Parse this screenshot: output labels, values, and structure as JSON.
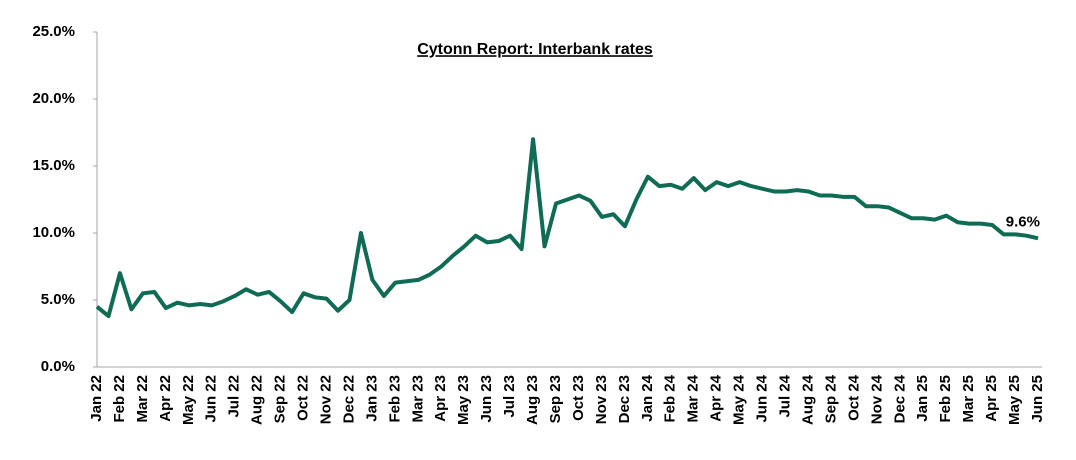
{
  "chart_data": {
    "type": "line",
    "title": "Cytonn Report: Interbank rates",
    "categories": [
      "Jan 22",
      null,
      "Feb 22",
      null,
      "Mar 22",
      null,
      "Apr 22",
      null,
      "May 22",
      null,
      "Jun 22",
      null,
      "Jul 22",
      null,
      "Aug 22",
      null,
      "Sep 22",
      null,
      "Oct 22",
      null,
      "Nov 22",
      null,
      "Dec 22",
      null,
      "Jan 23",
      null,
      "Feb 23",
      null,
      "Mar 23",
      null,
      "Apr 23",
      null,
      "May 23",
      null,
      "Jun 23",
      null,
      "Jul 23",
      null,
      "Aug 23",
      null,
      "Sep 23",
      null,
      "Oct 23",
      null,
      "Nov 23",
      null,
      "Dec 23",
      null,
      "Jan 24",
      null,
      "Feb 24",
      null,
      "Mar 24",
      null,
      "Apr 24",
      null,
      "May 24",
      null,
      "Jun 24",
      null,
      "Jul 24",
      null,
      "Aug 24",
      null,
      "Sep 24",
      null,
      "Oct 24",
      null,
      "Nov 24",
      null,
      "Dec 24",
      null,
      "Jan 25",
      null,
      "Feb 25",
      null,
      "Mar 25",
      null,
      "Apr 25",
      null,
      "May 25",
      null,
      "Jun 25"
    ],
    "series": [
      {
        "name": "Interbank rate",
        "color": "#106b54",
        "values": [
          4.5,
          3.8,
          7.0,
          4.3,
          5.5,
          5.6,
          4.4,
          4.8,
          4.6,
          4.7,
          4.6,
          4.9,
          5.3,
          5.8,
          5.4,
          5.6,
          4.9,
          4.1,
          5.5,
          5.2,
          5.1,
          4.2,
          5.0,
          10.0,
          6.5,
          5.3,
          6.3,
          6.4,
          6.5,
          6.9,
          7.5,
          8.3,
          9.0,
          9.8,
          9.3,
          9.4,
          9.8,
          8.8,
          17.0,
          9.0,
          12.2,
          12.5,
          12.8,
          12.4,
          11.2,
          11.4,
          10.5,
          12.5,
          14.2,
          13.5,
          13.6,
          13.3,
          14.1,
          13.2,
          13.8,
          13.5,
          13.8,
          13.5,
          13.3,
          13.1,
          13.1,
          13.2,
          13.1,
          12.8,
          12.8,
          12.7,
          12.7,
          12.0,
          12.0,
          11.9,
          11.5,
          11.1,
          11.1,
          11.0,
          11.3,
          10.8,
          10.7,
          10.7,
          10.6,
          9.9,
          9.9,
          9.8,
          9.6
        ],
        "value_labels": [
          null,
          null,
          null,
          null,
          null,
          null,
          null,
          null,
          null,
          null,
          null,
          null,
          null,
          null,
          null,
          null,
          null,
          null,
          null,
          null,
          null,
          null,
          null,
          null,
          null,
          null,
          null,
          null,
          null,
          null,
          null,
          null,
          null,
          null,
          null,
          null,
          null,
          null,
          null,
          null,
          null,
          null,
          null,
          null,
          null,
          null,
          null,
          null,
          null,
          null,
          null,
          null,
          null,
          null,
          null,
          null,
          null,
          null,
          null,
          null,
          null,
          null,
          null,
          null,
          null,
          null,
          null,
          null,
          null,
          null,
          null,
          null,
          null,
          null,
          null,
          null,
          null,
          null,
          null,
          null,
          null,
          null,
          "9.6%"
        ]
      }
    ],
    "ylim": [
      0,
      25
    ],
    "yticks": [
      {
        "value": 0,
        "label": "0.0%"
      },
      {
        "value": 5,
        "label": "5.0%"
      },
      {
        "value": 10,
        "label": "10.0%"
      },
      {
        "value": 15,
        "label": "15.0%"
      },
      {
        "value": 20,
        "label": "20.0%"
      },
      {
        "value": 25,
        "label": "25.0%"
      }
    ],
    "grid": false
  }
}
